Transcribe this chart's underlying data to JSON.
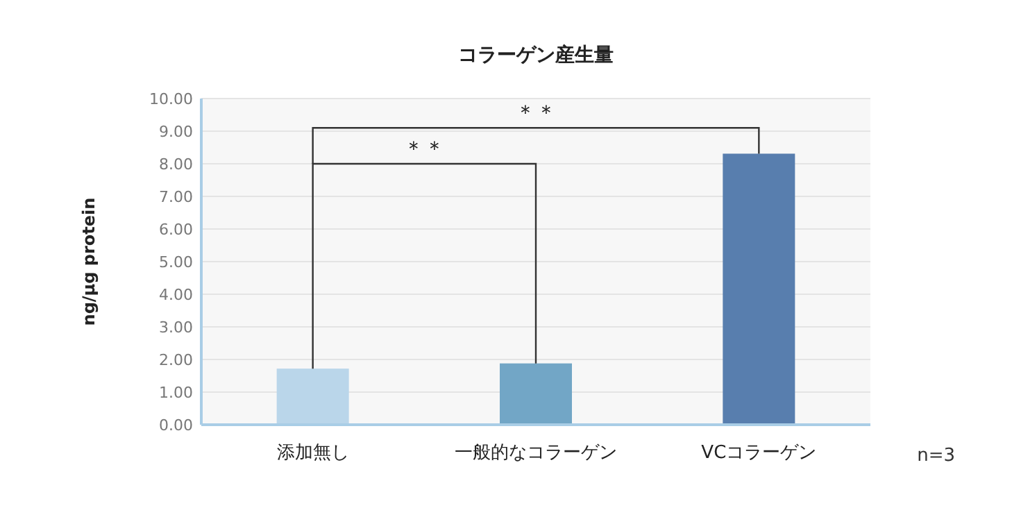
{
  "chart_data": {
    "type": "bar",
    "title": "コラーゲン産生量",
    "ylabel": "ng/μg protein",
    "categories": [
      "添加無し",
      "一般的なコラーゲン",
      "VCコラーゲン"
    ],
    "values": [
      1.72,
      1.88,
      8.31
    ],
    "colors": [
      "#bad6ea",
      "#72a6c6",
      "#587eae"
    ],
    "ylim": [
      0,
      10
    ],
    "yticks": [
      {
        "value": 0,
        "label": "0.00"
      },
      {
        "value": 1,
        "label": "1.00"
      },
      {
        "value": 2,
        "label": "2.00"
      },
      {
        "value": 3,
        "label": "3.00"
      },
      {
        "value": 4,
        "label": "4.00"
      },
      {
        "value": 5,
        "label": "5.00"
      },
      {
        "value": 6,
        "label": "6.00"
      },
      {
        "value": 7,
        "label": "7.00"
      },
      {
        "value": 8,
        "label": "8.00"
      },
      {
        "value": 9,
        "label": "9.00"
      },
      {
        "value": 10,
        "label": "10.00"
      }
    ],
    "grid": "y",
    "annotations": [
      "＊＊",
      "＊＊",
      "n=3"
    ]
  }
}
